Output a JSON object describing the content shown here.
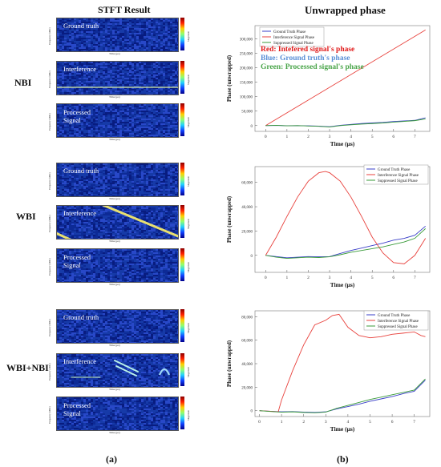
{
  "headers": {
    "stft": "STFT Result",
    "unwrapped": "Unwrapped phase"
  },
  "row_labels": {
    "nbi": "NBI",
    "wbi": "WBI",
    "wbi_nbi": "WBI+NBI"
  },
  "captions": {
    "a": "(a)",
    "b": "(b)"
  },
  "spec_titles": {
    "ground_truth": "Ground truth",
    "interference": "Interference",
    "processed_line1": "Processed",
    "processed_line2": "Signal"
  },
  "spec_axes": {
    "y": "Frequency (MHz)",
    "x": "Time (μs)",
    "cbar": "Magnitude"
  },
  "colors": {
    "ground_truth": "#3a3fc8",
    "interference": "#e8413c",
    "suppressed": "#3a9b3a",
    "spec_bg": "#0a1e8c",
    "annotation_red": "#e01b1b",
    "annotation_blue": "#5a8fd6",
    "annotation_green": "#4aa54a"
  },
  "chart_data": [
    {
      "type": "line",
      "xlabel": "Time (μs)",
      "ylabel": "Phase (unwrapped)",
      "xlim": [
        -0.5,
        7.7
      ],
      "ylim": [
        -20000,
        345000
      ],
      "xticks": [
        0,
        1,
        2,
        3,
        4,
        5,
        6,
        7
      ],
      "yticks": [
        0,
        50000,
        100000,
        150000,
        200000,
        250000,
        300000
      ],
      "ytick_labels": [
        "0",
        "50,000",
        "100,000",
        "150,000",
        "200,000",
        "250,000",
        "300,000"
      ],
      "legend": "top-left",
      "annotations": [
        "Red: Intefered signal's phase",
        "Blue: Ground truth's phase",
        "Green: Processed signal's phase"
      ],
      "series": [
        {
          "name": "Ground Truth Phase",
          "x": [
            0,
            0.5,
            1,
            1.5,
            2,
            2.5,
            3,
            3.5,
            4,
            4.5,
            5,
            5.5,
            6,
            6.5,
            7,
            7.5
          ],
          "values": [
            0,
            500,
            -500,
            0,
            -1000,
            -2000,
            -4000,
            1000,
            4000,
            7000,
            9000,
            11000,
            14000,
            16000,
            18000,
            27000
          ]
        },
        {
          "name": "Interference Signal Phase",
          "x": [
            0,
            7.5
          ],
          "values": [
            0,
            330000
          ]
        },
        {
          "name": "Suppressed Signal Phase",
          "x": [
            0,
            0.5,
            1,
            1.5,
            2,
            2.5,
            3,
            3.5,
            4,
            4.5,
            5,
            5.5,
            6,
            6.5,
            7,
            7.5
          ],
          "values": [
            0,
            800,
            -800,
            0,
            -1500,
            -2500,
            -5000,
            0,
            2500,
            5000,
            7000,
            9000,
            12000,
            14500,
            17000,
            23000
          ]
        }
      ]
    },
    {
      "type": "line",
      "xlabel": "Time (μs)",
      "ylabel": "Phase (unwrapped)",
      "xlim": [
        -0.5,
        7.7
      ],
      "ylim": [
        -14000,
        73000
      ],
      "xticks": [
        0,
        1,
        2,
        3,
        4,
        5,
        6,
        7
      ],
      "yticks": [
        0,
        20000,
        40000,
        60000
      ],
      "ytick_labels": [
        "0",
        "20,000",
        "40,000",
        "60,000"
      ],
      "legend": "top-right",
      "series": [
        {
          "name": "Ground Truth Phase",
          "x": [
            0,
            0.5,
            1,
            1.5,
            2,
            2.5,
            3,
            3.5,
            4,
            4.5,
            5,
            5.5,
            6,
            6.5,
            7,
            7.5
          ],
          "values": [
            0,
            -1000,
            -2000,
            -1500,
            -1000,
            -1200,
            -1000,
            1500,
            4000,
            6000,
            8000,
            10000,
            12500,
            14000,
            16500,
            24000
          ]
        },
        {
          "name": "Interference Signal Phase",
          "x": [
            0,
            0.5,
            1,
            1.5,
            2,
            2.5,
            2.8,
            3,
            3.5,
            4,
            4.5,
            5,
            5.5,
            6,
            6.5,
            7,
            7.5
          ],
          "values": [
            0,
            15000,
            32000,
            48000,
            61000,
            68000,
            69000,
            68000,
            61000,
            48000,
            32000,
            15000,
            2000,
            -6000,
            -7000,
            0,
            14000
          ]
        },
        {
          "name": "Suppressed Signal Phase",
          "x": [
            0,
            0.5,
            1,
            1.5,
            2,
            2.5,
            3,
            3.5,
            4,
            4.5,
            5,
            5.5,
            6,
            6.5,
            7,
            7.5
          ],
          "values": [
            0,
            -1500,
            -2500,
            -2000,
            -1500,
            -1800,
            -1200,
            500,
            2500,
            4000,
            5500,
            7000,
            9000,
            11000,
            14000,
            22000
          ]
        }
      ]
    },
    {
      "type": "line",
      "xlabel": "Time (μs)",
      "ylabel": "Phase (unwrapped)",
      "xlim": [
        -0.2,
        7.7
      ],
      "ylim": [
        -5000,
        85000
      ],
      "xticks": [
        0,
        1,
        2,
        3,
        4,
        5,
        6,
        7
      ],
      "yticks": [
        0,
        20000,
        40000,
        60000,
        80000
      ],
      "ytick_labels": [
        "0",
        "20,000",
        "40,000",
        "60,000",
        "80,000"
      ],
      "legend": "top-right",
      "series": [
        {
          "name": "Ground Truth Phase",
          "x": [
            0,
            0.5,
            1,
            1.5,
            2,
            2.5,
            3,
            3.5,
            4,
            4.5,
            5,
            5.5,
            6,
            6.5,
            7,
            7.5
          ],
          "values": [
            0,
            -500,
            -1000,
            -800,
            -1200,
            -1500,
            -1000,
            1500,
            3500,
            5500,
            8000,
            10000,
            12000,
            14500,
            16500,
            26000
          ]
        },
        {
          "name": "Interference Signal Phase",
          "x": [
            0,
            0.5,
            0.85,
            1,
            1.5,
            2,
            2.5,
            3,
            3.3,
            3.6,
            4,
            4.5,
            5,
            5.5,
            6,
            6.5,
            7,
            7.3,
            7.5
          ],
          "values": [
            0,
            -500,
            -1000,
            9000,
            34000,
            56000,
            73000,
            77000,
            81000,
            82000,
            71000,
            64000,
            62000,
            63000,
            65000,
            66000,
            67000,
            64000,
            63000
          ]
        },
        {
          "name": "Suppressed Signal Phase",
          "x": [
            0,
            0.5,
            1,
            1.5,
            2,
            2.5,
            3,
            3.5,
            4,
            4.5,
            5,
            5.5,
            6,
            6.5,
            7,
            7.5
          ],
          "values": [
            0,
            -700,
            -1300,
            -1000,
            -1500,
            -1800,
            -1200,
            2000,
            4500,
            7000,
            9500,
            11500,
            13500,
            15500,
            17500,
            27000
          ]
        }
      ]
    }
  ]
}
